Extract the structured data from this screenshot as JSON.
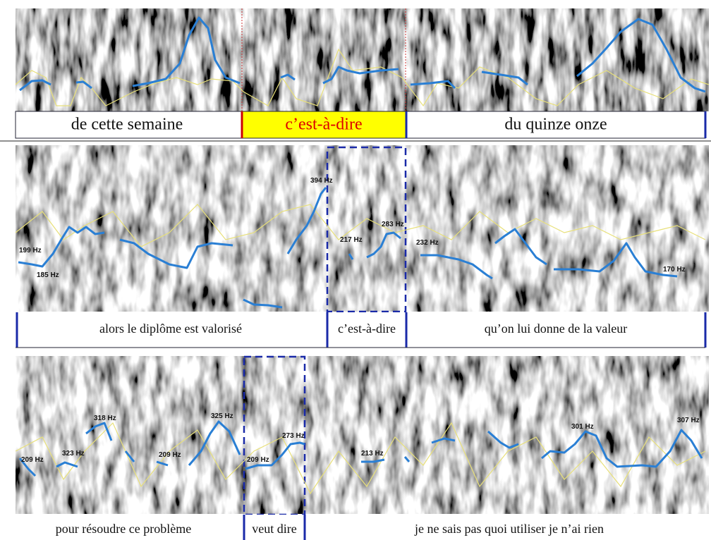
{
  "panels": [
    {
      "segments": [
        "de cette semaine",
        "c’est-à-dire",
        "du quinze onze"
      ],
      "annotations": []
    },
    {
      "segments": [
        "alors le diplôme est valorisé",
        "c’est-à-dire",
        "qu’on lui donne de la valeur"
      ],
      "annotations": [
        "199 Hz",
        "185 Hz",
        "394 Hz",
        "217 Hz",
        "283 Hz",
        "232 Hz",
        "170 Hz"
      ]
    },
    {
      "segments": [
        "pour résoudre ce problème",
        "veut dire",
        "je ne sais pas quoi utiliser je n’ai rien"
      ],
      "annotations": [
        "209 Hz",
        "323 Hz",
        "318 Hz",
        "209 Hz",
        "325 Hz",
        "209 Hz",
        "273 Hz",
        "213 Hz",
        "301 Hz",
        "307 Hz"
      ]
    }
  ]
}
